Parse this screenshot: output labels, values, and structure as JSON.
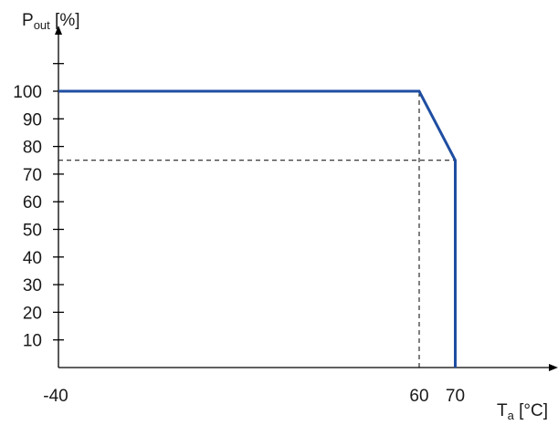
{
  "chart_data": {
    "type": "line",
    "y_title": {
      "main": "P",
      "sub": "out",
      "unit": " [%]"
    },
    "x_title": {
      "main": "T",
      "sub": "a",
      "unit": " [°C]"
    },
    "y_ticks": [
      10,
      20,
      30,
      40,
      50,
      60,
      70,
      80,
      90,
      100
    ],
    "y_tick_labels": [
      "10",
      "20",
      "30",
      "40",
      "50",
      "60",
      "70",
      "80",
      "90",
      "100"
    ],
    "y_unlabeled_ticks": [
      110
    ],
    "x_ticks": [
      -40,
      60,
      70
    ],
    "x_tick_labels": [
      "-40",
      "60",
      "70"
    ],
    "xlim": [
      -40,
      96
    ],
    "ylim": [
      0,
      112
    ],
    "series": [
      {
        "x": [
          -40,
          60,
          70,
          70
        ],
        "y": [
          100,
          100,
          75,
          0
        ],
        "color": "#1f4ea1"
      }
    ],
    "reference_lines": [
      {
        "x": [
          60,
          60
        ],
        "y": [
          0,
          100
        ]
      },
      {
        "x": [
          -40,
          70
        ],
        "y": [
          75,
          75
        ]
      }
    ],
    "grid": false,
    "colors": {
      "series": "#1f4ea1",
      "axis": "#000000",
      "reference": "#000000"
    }
  }
}
